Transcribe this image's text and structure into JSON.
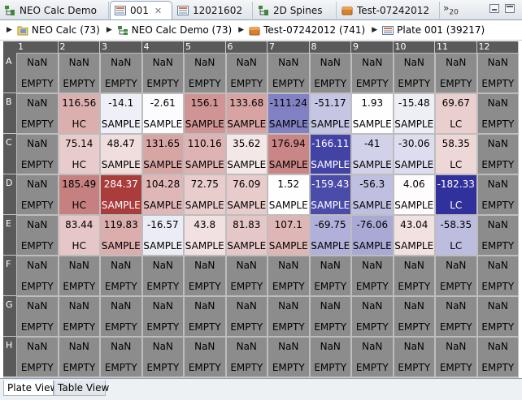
{
  "tabs": [
    {
      "label": "NEO Calc Demo",
      "icon": "tree-icon",
      "active": false,
      "closable": false
    },
    {
      "label": "001",
      "icon": "plate-icon",
      "active": true,
      "closable": true
    },
    {
      "label": "12021602",
      "icon": "plate-icon",
      "active": false,
      "closable": false
    },
    {
      "label": "2D Spines",
      "icon": "tree-icon",
      "active": false,
      "closable": false
    },
    {
      "label": "Test-07242012",
      "icon": "folder-icon",
      "active": false,
      "closable": false
    }
  ],
  "tab_close_glyph": "✕",
  "tabs_overflow": {
    "label": "»",
    "count": "20"
  },
  "breadcrumb": [
    {
      "label": "NEO Calc (73)",
      "icon": "folder-icon"
    },
    {
      "label": "NEO Calc Demo (73)",
      "icon": "tree-icon"
    },
    {
      "label": "Test-07242012 (741)",
      "icon": "box-icon"
    },
    {
      "label": "Plate 001 (39217)",
      "icon": "plate-icon"
    }
  ],
  "breadcrumb_arrow": "▶",
  "plate": {
    "columns": [
      "1",
      "2",
      "3",
      "4",
      "5",
      "6",
      "7",
      "8",
      "9",
      "10",
      "11",
      "12"
    ],
    "rows": [
      {
        "label": "A",
        "wells": [
          {
            "value": "NaN",
            "type": "EMPTY"
          },
          {
            "value": "NaN",
            "type": "EMPTY"
          },
          {
            "value": "NaN",
            "type": "EMPTY"
          },
          {
            "value": "NaN",
            "type": "EMPTY"
          },
          {
            "value": "NaN",
            "type": "EMPTY"
          },
          {
            "value": "NaN",
            "type": "EMPTY"
          },
          {
            "value": "NaN",
            "type": "EMPTY"
          },
          {
            "value": "NaN",
            "type": "EMPTY"
          },
          {
            "value": "NaN",
            "type": "EMPTY"
          },
          {
            "value": "NaN",
            "type": "EMPTY"
          },
          {
            "value": "NaN",
            "type": "EMPTY"
          },
          {
            "value": "NaN",
            "type": "EMPTY"
          }
        ]
      },
      {
        "label": "B",
        "wells": [
          {
            "value": "NaN",
            "type": "EMPTY"
          },
          {
            "value": "116.56",
            "type": "HC"
          },
          {
            "value": "-14.1",
            "type": "SAMPLE"
          },
          {
            "value": "-2.61",
            "type": "SAMPLE"
          },
          {
            "value": "156.1",
            "type": "SAMPLE"
          },
          {
            "value": "133.68",
            "type": "SAMPLE"
          },
          {
            "value": "-111.24",
            "type": "SAMPLE"
          },
          {
            "value": "-51.17",
            "type": "SAMPLE"
          },
          {
            "value": "1.93",
            "type": "SAMPLE"
          },
          {
            "value": "-15.48",
            "type": "SAMPLE"
          },
          {
            "value": "69.67",
            "type": "LC"
          },
          {
            "value": "NaN",
            "type": "EMPTY"
          }
        ]
      },
      {
        "label": "C",
        "wells": [
          {
            "value": "NaN",
            "type": "EMPTY"
          },
          {
            "value": "75.14",
            "type": "HC"
          },
          {
            "value": "48.47",
            "type": "SAMPLE"
          },
          {
            "value": "131.65",
            "type": "SAMPLE"
          },
          {
            "value": "110.16",
            "type": "SAMPLE"
          },
          {
            "value": "35.62",
            "type": "SAMPLE"
          },
          {
            "value": "176.94",
            "type": "SAMPLE"
          },
          {
            "value": "-166.11",
            "type": "SAMPLE"
          },
          {
            "value": "-41",
            "type": "SAMPLE"
          },
          {
            "value": "-30.06",
            "type": "SAMPLE"
          },
          {
            "value": "58.35",
            "type": "LC"
          },
          {
            "value": "NaN",
            "type": "EMPTY"
          }
        ]
      },
      {
        "label": "D",
        "wells": [
          {
            "value": "NaN",
            "type": "EMPTY"
          },
          {
            "value": "185.49",
            "type": "HC"
          },
          {
            "value": "284.37",
            "type": "SAMPLE"
          },
          {
            "value": "104.28",
            "type": "SAMPLE"
          },
          {
            "value": "72.75",
            "type": "SAMPLE"
          },
          {
            "value": "76.09",
            "type": "SAMPLE"
          },
          {
            "value": "1.52",
            "type": "SAMPLE"
          },
          {
            "value": "-159.43",
            "type": "SAMPLE"
          },
          {
            "value": "-56.3",
            "type": "SAMPLE"
          },
          {
            "value": "4.06",
            "type": "SAMPLE"
          },
          {
            "value": "-182.33",
            "type": "LC"
          },
          {
            "value": "NaN",
            "type": "EMPTY"
          }
        ]
      },
      {
        "label": "E",
        "wells": [
          {
            "value": "NaN",
            "type": "EMPTY"
          },
          {
            "value": "83.44",
            "type": "HC"
          },
          {
            "value": "119.83",
            "type": "SAMPLE"
          },
          {
            "value": "-16.57",
            "type": "SAMPLE"
          },
          {
            "value": "43.8",
            "type": "SAMPLE"
          },
          {
            "value": "81.83",
            "type": "SAMPLE"
          },
          {
            "value": "107.1",
            "type": "SAMPLE"
          },
          {
            "value": "-69.75",
            "type": "SAMPLE"
          },
          {
            "value": "-76.06",
            "type": "SAMPLE"
          },
          {
            "value": "43.04",
            "type": "SAMPLE"
          },
          {
            "value": "-58.35",
            "type": "LC"
          },
          {
            "value": "NaN",
            "type": "EMPTY"
          }
        ]
      },
      {
        "label": "F",
        "wells": [
          {
            "value": "NaN",
            "type": "EMPTY"
          },
          {
            "value": "NaN",
            "type": "EMPTY"
          },
          {
            "value": "NaN",
            "type": "EMPTY"
          },
          {
            "value": "NaN",
            "type": "EMPTY"
          },
          {
            "value": "NaN",
            "type": "EMPTY"
          },
          {
            "value": "NaN",
            "type": "EMPTY"
          },
          {
            "value": "NaN",
            "type": "EMPTY"
          },
          {
            "value": "NaN",
            "type": "EMPTY"
          },
          {
            "value": "NaN",
            "type": "EMPTY"
          },
          {
            "value": "NaN",
            "type": "EMPTY"
          },
          {
            "value": "NaN",
            "type": "EMPTY"
          },
          {
            "value": "NaN",
            "type": "EMPTY"
          }
        ]
      },
      {
        "label": "G",
        "wells": [
          {
            "value": "NaN",
            "type": "EMPTY"
          },
          {
            "value": "NaN",
            "type": "EMPTY"
          },
          {
            "value": "NaN",
            "type": "EMPTY"
          },
          {
            "value": "NaN",
            "type": "EMPTY"
          },
          {
            "value": "NaN",
            "type": "EMPTY"
          },
          {
            "value": "NaN",
            "type": "EMPTY"
          },
          {
            "value": "NaN",
            "type": "EMPTY"
          },
          {
            "value": "NaN",
            "type": "EMPTY"
          },
          {
            "value": "NaN",
            "type": "EMPTY"
          },
          {
            "value": "NaN",
            "type": "EMPTY"
          },
          {
            "value": "NaN",
            "type": "EMPTY"
          },
          {
            "value": "NaN",
            "type": "EMPTY"
          }
        ]
      },
      {
        "label": "H",
        "wells": [
          {
            "value": "NaN",
            "type": "EMPTY"
          },
          {
            "value": "NaN",
            "type": "EMPTY"
          },
          {
            "value": "NaN",
            "type": "EMPTY"
          },
          {
            "value": "NaN",
            "type": "EMPTY"
          },
          {
            "value": "NaN",
            "type": "EMPTY"
          },
          {
            "value": "NaN",
            "type": "EMPTY"
          },
          {
            "value": "NaN",
            "type": "EMPTY"
          },
          {
            "value": "NaN",
            "type": "EMPTY"
          },
          {
            "value": "NaN",
            "type": "EMPTY"
          },
          {
            "value": "NaN",
            "type": "EMPTY"
          },
          {
            "value": "NaN",
            "type": "EMPTY"
          },
          {
            "value": "NaN",
            "type": "EMPTY"
          }
        ]
      }
    ]
  },
  "colors": {
    "empty": "#8c8c8c",
    "header": "#5a5a5a",
    "high": "#a83838",
    "low": "#2e2e9c",
    "neutral": "#ffffff",
    "accent": "#8da3bb"
  },
  "bottom_tabs": [
    {
      "label": "Plate View",
      "active": true
    },
    {
      "label": "Table View",
      "active": false
    }
  ]
}
